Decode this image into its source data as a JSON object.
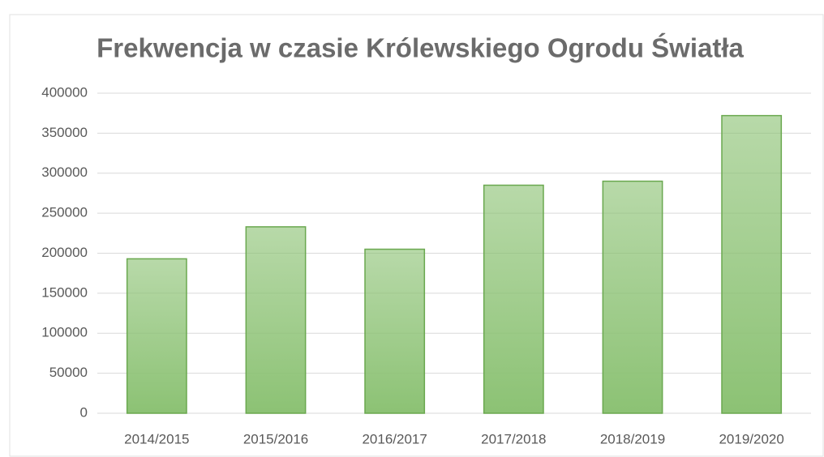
{
  "chart_data": {
    "type": "bar",
    "title": "Frekwencja w czasie Królewskiego Ogrodu Światła",
    "categories": [
      "2014/2015",
      "2015/2016",
      "2016/2017",
      "2017/2018",
      "2018/2019",
      "2019/2020"
    ],
    "values": [
      193000,
      233000,
      205000,
      285000,
      290000,
      372000
    ],
    "color": "#8cc274",
    "ylim": [
      0,
      400000
    ],
    "yticks": [
      0,
      50000,
      100000,
      150000,
      200000,
      250000,
      300000,
      350000,
      400000
    ],
    "grid": true
  }
}
